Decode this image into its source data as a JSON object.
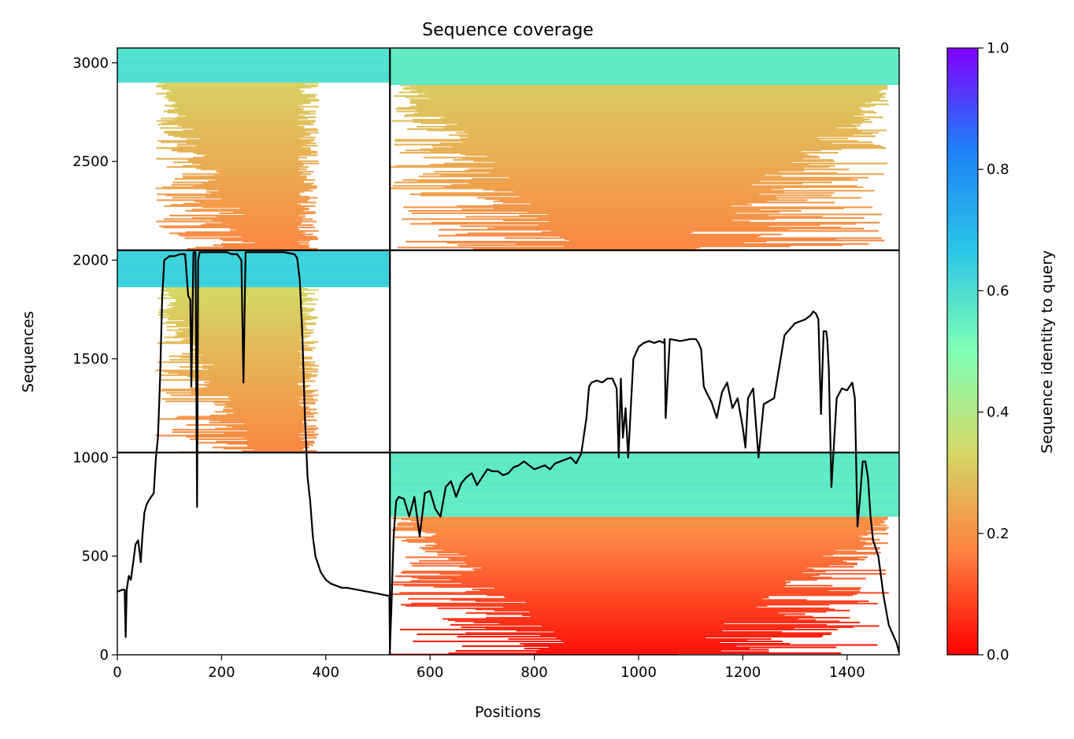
{
  "chart_data": {
    "type": "heatmap",
    "title": "Sequence coverage",
    "xlabel": "Positions",
    "ylabel": "Sequences",
    "xlim": [
      0,
      1500
    ],
    "ylim": [
      0,
      3075
    ],
    "xticks": [
      0,
      200,
      400,
      600,
      800,
      1000,
      1200,
      1400
    ],
    "yticks": [
      0,
      500,
      1000,
      1500,
      2000,
      2500,
      3000
    ],
    "grid": false,
    "colorbar": {
      "label": "Sequence identity to query",
      "range": [
        0,
        1
      ],
      "ticks": [
        "0.0",
        "0.2",
        "0.4",
        "0.6",
        "0.8",
        "1.0"
      ],
      "colormap": "rainbow_r",
      "stops": [
        "#ff0000",
        "#ff7f3f",
        "#d4d865",
        "#80ffb4",
        "#2ac6e7",
        "#1e80f7",
        "#8000ff"
      ]
    },
    "block_boundaries": {
      "x": [
        523
      ],
      "y": [
        1025,
        2050
      ]
    },
    "blocks": [
      {
        "rows": [
          0,
          1025
        ],
        "cols": [
          0,
          523
        ],
        "coverage": "none"
      },
      {
        "rows": [
          0,
          1025
        ],
        "cols": [
          523,
          1500
        ],
        "top_identity": 0.55,
        "bottom_identity": 0.02,
        "high_identity_rows": [
          700,
          1025
        ]
      },
      {
        "rows": [
          1025,
          2050
        ],
        "cols": [
          0,
          523
        ],
        "top_identity": 0.62,
        "bottom_identity": 0.18,
        "high_identity_rows": [
          1860,
          2050
        ]
      },
      {
        "rows": [
          1025,
          2050
        ],
        "cols": [
          523,
          1500
        ],
        "coverage": "none"
      },
      {
        "rows": [
          2050,
          3075
        ],
        "cols": [
          0,
          523
        ],
        "top_identity": 0.58,
        "bottom_identity": 0.18,
        "high_identity_rows": [
          2900,
          3075
        ]
      },
      {
        "rows": [
          2050,
          3075
        ],
        "cols": [
          523,
          1500
        ],
        "top_identity": 0.55,
        "bottom_identity": 0.18,
        "high_identity_rows": [
          2890,
          3075
        ]
      }
    ],
    "series": [
      {
        "x": [
          0,
          10,
          14,
          16,
          18,
          22,
          26,
          30,
          35,
          40,
          45,
          48,
          52,
          56,
          60,
          65,
          70,
          74,
          78,
          82,
          86,
          90,
          95,
          100,
          110,
          120,
          130,
          136,
          140,
          142,
          146,
          150,
          153,
          155,
          158,
          162,
          170,
          180,
          200,
          210,
          220,
          230,
          238,
          242,
          246,
          250,
          260,
          280,
          300,
          320,
          340,
          345,
          350,
          355,
          360,
          365,
          370,
          375,
          380,
          390,
          400,
          410,
          420,
          430,
          440,
          460,
          480,
          500,
          518,
          522,
          523,
          526,
          530,
          535,
          540,
          550,
          560,
          570,
          580,
          590,
          600,
          610,
          620,
          630,
          640,
          650,
          660,
          670,
          680,
          690,
          700,
          710,
          720,
          730,
          740,
          750,
          760,
          770,
          780,
          790,
          800,
          810,
          820,
          830,
          840,
          850,
          860,
          870,
          880,
          890,
          900,
          905,
          910,
          920,
          930,
          940,
          950,
          958,
          962,
          966,
          970,
          975,
          980,
          990,
          1000,
          1010,
          1020,
          1030,
          1040,
          1048,
          1050,
          1052,
          1060,
          1080,
          1100,
          1110,
          1115,
          1120,
          1125,
          1130,
          1140,
          1150,
          1160,
          1170,
          1180,
          1190,
          1200,
          1205,
          1210,
          1220,
          1230,
          1240,
          1260,
          1280,
          1300,
          1320,
          1330,
          1335,
          1340,
          1345,
          1350,
          1355,
          1360,
          1362,
          1365,
          1370,
          1380,
          1390,
          1400,
          1410,
          1415,
          1420,
          1425,
          1430,
          1435,
          1440,
          1445,
          1450,
          1460,
          1470,
          1480,
          1490,
          1495,
          1500
        ],
        "values": [
          320,
          330,
          330,
          90,
          330,
          400,
          380,
          460,
          560,
          580,
          470,
          600,
          720,
          760,
          780,
          800,
          820,
          1000,
          1100,
          1400,
          1800,
          2000,
          2010,
          2020,
          2020,
          2030,
          2030,
          1820,
          1800,
          1360,
          2040,
          2040,
          750,
          2000,
          2040,
          2040,
          2040,
          2040,
          2040,
          2040,
          2030,
          2030,
          2000,
          1380,
          2040,
          2040,
          2040,
          2040,
          2040,
          2040,
          2030,
          2010,
          1900,
          1620,
          1200,
          900,
          780,
          600,
          500,
          420,
          380,
          360,
          350,
          340,
          340,
          330,
          320,
          310,
          300,
          300,
          30,
          250,
          600,
          780,
          800,
          790,
          700,
          800,
          600,
          820,
          830,
          740,
          700,
          850,
          880,
          800,
          870,
          900,
          920,
          860,
          900,
          940,
          930,
          930,
          910,
          920,
          950,
          960,
          980,
          960,
          940,
          950,
          960,
          940,
          970,
          980,
          990,
          1000,
          970,
          1020,
          1200,
          1360,
          1380,
          1390,
          1380,
          1400,
          1400,
          1350,
          1000,
          1400,
          1100,
          1250,
          1000,
          1500,
          1560,
          1580,
          1590,
          1580,
          1590,
          1580,
          1600,
          1200,
          1600,
          1590,
          1600,
          1600,
          1580,
          1550,
          1360,
          1330,
          1280,
          1200,
          1330,
          1380,
          1250,
          1300,
          1150,
          1050,
          1300,
          1350,
          1000,
          1270,
          1300,
          1620,
          1680,
          1700,
          1720,
          1740,
          1730,
          1700,
          1220,
          1640,
          1640,
          1600,
          1450,
          850,
          1300,
          1350,
          1340,
          1380,
          1300,
          650,
          800,
          980,
          980,
          900,
          700,
          580,
          500,
          300,
          150,
          90,
          60,
          10
        ]
      }
    ]
  }
}
